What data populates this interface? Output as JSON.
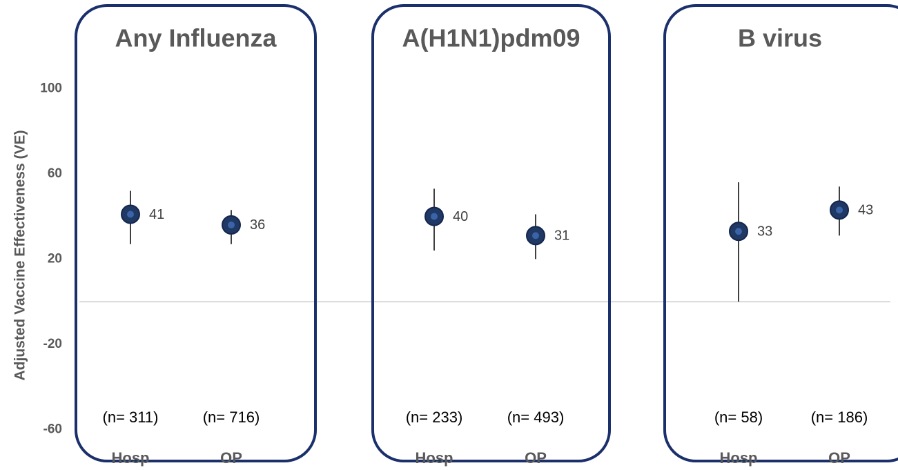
{
  "chart_data": {
    "type": "errorbar",
    "y_label": "Adjusted Vaccine Effectiveness (VE)",
    "groups": [
      {
        "title": "Any Influenza",
        "sample_sizes": [
          "(n= 311)",
          "(n= 716)"
        ]
      },
      {
        "title": "A(H1N1)pdm09",
        "sample_sizes": [
          "(n= 233)",
          "(n= 493)"
        ]
      },
      {
        "title": "B virus",
        "sample_sizes": [
          "(n= 58)",
          "(n= 186)"
        ]
      }
    ],
    "categories": [
      "Hosp",
      "OP",
      "Hosp",
      "OP",
      "Hosp",
      "OP"
    ],
    "series": [
      {
        "color": "#1f3864",
        "values": [
          41,
          36,
          40,
          31,
          33,
          43
        ],
        "lower": [
          27,
          27,
          24,
          20,
          0,
          31
        ],
        "upper": [
          52,
          43,
          53,
          41,
          56,
          54
        ]
      }
    ],
    "ylim": [
      -70,
      140
    ],
    "yticks": [
      -60,
      -20,
      20,
      60,
      100
    ]
  }
}
